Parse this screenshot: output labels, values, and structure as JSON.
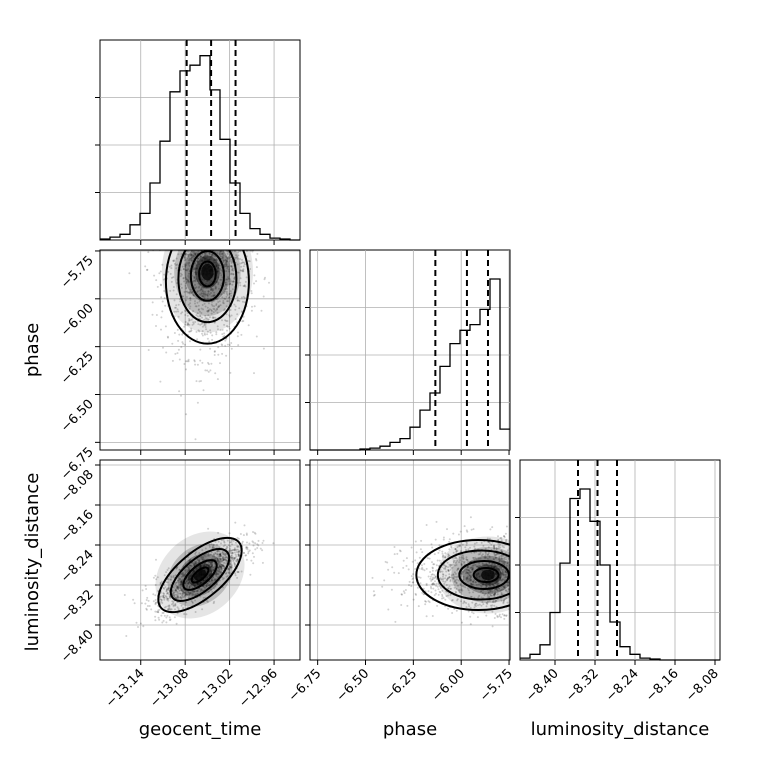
{
  "chart_data": {
    "type": "corner",
    "parameters": [
      {
        "name": "geocent_time",
        "label": "geocent_time",
        "ticks": [
          -13.14,
          -13.08,
          -13.02,
          -12.96
        ],
        "tick_labels": [
          "−13.14",
          "−13.08",
          "−13.02",
          "−12.96"
        ],
        "range": [
          -13.195,
          -12.925
        ],
        "quantiles": [
          -13.078,
          -13.045,
          -13.012
        ],
        "histogram": {
          "edges_start": -13.195,
          "bin_width": 0.0135,
          "counts": [
            0.5,
            1.5,
            3,
            8,
            14,
            30,
            52,
            78,
            89,
            92,
            97,
            79,
            53,
            30,
            14,
            6,
            3,
            1,
            0.5,
            0
          ]
        },
        "hist_ylim": [
          0,
          100
        ]
      },
      {
        "name": "phase",
        "label": "phase",
        "ticks": [
          -6.75,
          -6.5,
          -6.25,
          -6.0,
          -5.75
        ],
        "tick_labels": [
          "−6.75",
          "−6.50",
          "−6.25",
          "−6.00",
          "−5.75"
        ],
        "range": [
          -6.79,
          -5.745
        ],
        "quantiles": [
          -6.135,
          -5.97,
          -5.86
        ],
        "histogram": {
          "edges_start": -6.79,
          "bin_width": 0.05225,
          "counts": [
            0,
            0,
            0,
            0,
            0,
            0.5,
            1,
            2,
            4,
            6,
            12,
            21,
            30,
            44,
            56,
            63,
            66,
            74,
            90,
            11
          ]
        },
        "hist_ylim": [
          0,
          100
        ]
      },
      {
        "name": "luminosity_distance",
        "label": "luminosity_distance",
        "ticks": [
          -8.4,
          -8.32,
          -8.24,
          -8.16,
          -8.08
        ],
        "tick_labels": [
          "−8.40",
          "−8.32",
          "−8.24",
          "−8.16",
          "−8.08"
        ],
        "range": [
          -8.47,
          -8.07
        ],
        "quantiles": [
          -8.354,
          -8.315,
          -8.276
        ],
        "histogram": {
          "edges_start": -8.47,
          "bin_width": 0.02,
          "counts": [
            1,
            3,
            8,
            25,
            51,
            85,
            90,
            73,
            50,
            20,
            7,
            3,
            1,
            0.5,
            0,
            0,
            0,
            0,
            0,
            0
          ]
        },
        "hist_ylim": [
          0,
          100
        ]
      }
    ],
    "pair_stats": [
      {
        "x": "geocent_time",
        "y": "phase",
        "mean": [
          -13.05,
          -5.86
        ],
        "sd": [
          0.028,
          0.12
        ],
        "corr": 0.05,
        "skew_y": "negative"
      },
      {
        "x": "geocent_time",
        "y": "luminosity_distance",
        "mean": [
          -13.06,
          -8.3
        ],
        "sd": [
          0.03,
          0.035
        ],
        "corr": 0.75
      },
      {
        "x": "phase",
        "y": "luminosity_distance",
        "mean": [
          -5.86,
          -8.3
        ],
        "sd": [
          0.12,
          0.035
        ],
        "corr": 0.0,
        "skew_x": "negative"
      }
    ],
    "quantile_levels": [
      0.16,
      0.5,
      0.84
    ],
    "grid": true
  }
}
